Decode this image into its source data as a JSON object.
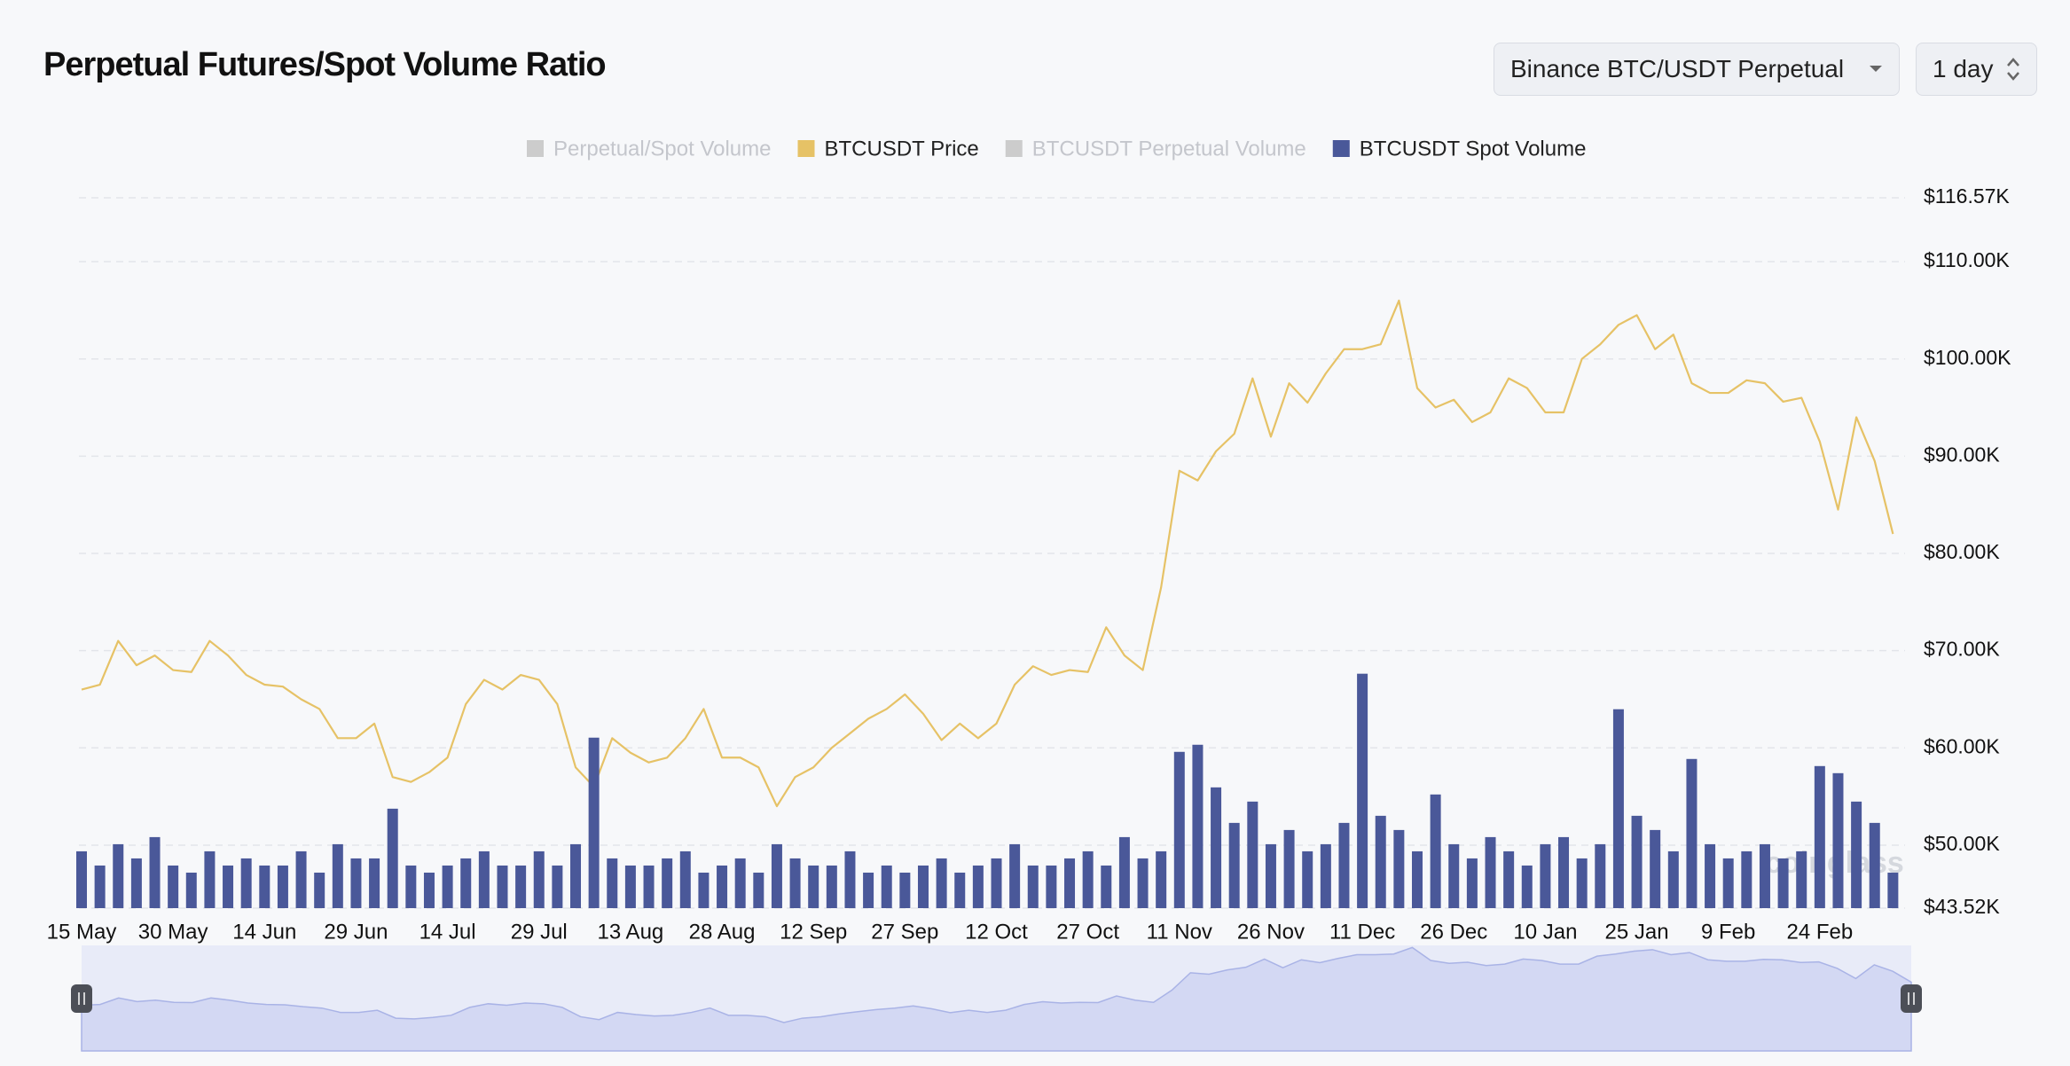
{
  "controls": {
    "exchange": "Binance BTC/USDT Perpetual",
    "interval": "1 day"
  },
  "chart_data": {
    "type": "bar-line",
    "title": "Perpetual Futures/Spot Volume Ratio",
    "watermark": "coinglass",
    "categories": [
      "15 May",
      null,
      null,
      null,
      null,
      "30 May",
      null,
      null,
      null,
      null,
      "14 Jun",
      null,
      null,
      null,
      null,
      "29 Jun",
      null,
      null,
      null,
      null,
      "14 Jul",
      null,
      null,
      null,
      null,
      "29 Jul",
      null,
      null,
      null,
      null,
      "13 Aug",
      null,
      null,
      null,
      null,
      "28 Aug",
      null,
      null,
      null,
      null,
      "12 Sep",
      null,
      null,
      null,
      null,
      "27 Sep",
      null,
      null,
      null,
      null,
      "12 Oct",
      null,
      null,
      null,
      null,
      "27 Oct",
      null,
      null,
      null,
      null,
      "11 Nov",
      null,
      null,
      null,
      null,
      "26 Nov",
      null,
      null,
      null,
      null,
      "11 Dec",
      null,
      null,
      null,
      null,
      "26 Dec",
      null,
      null,
      null,
      null,
      "10 Jan",
      null,
      null,
      null,
      null,
      "25 Jan",
      null,
      null,
      null,
      null,
      "9 Feb",
      null,
      null,
      null,
      null,
      "24 Feb",
      null,
      null,
      null,
      null
    ],
    "series": [
      {
        "name": "Perpetual/Spot Volume",
        "color": "#cccccc",
        "visible": false
      },
      {
        "name": "BTCUSDT Price",
        "color": "#e6c266",
        "visible": true,
        "values": [
          66000,
          66500,
          71000,
          68500,
          69500,
          68000,
          67800,
          71000,
          69500,
          67500,
          66500,
          66300,
          65000,
          64000,
          61000,
          61000,
          62500,
          57000,
          56500,
          57500,
          59000,
          64500,
          67000,
          66000,
          67500,
          67000,
          64500,
          58000,
          56000,
          61000,
          59500,
          58500,
          59000,
          61000,
          64000,
          59000,
          59000,
          58000,
          54000,
          57000,
          58000,
          60000,
          61500,
          63000,
          64000,
          65500,
          63500,
          60800,
          62500,
          61000,
          62500,
          66500,
          68400,
          67500,
          68000,
          67800,
          72400,
          69500,
          68000,
          76500,
          88500,
          87500,
          90500,
          92300,
          98000,
          92000,
          97500,
          95500,
          98500,
          101000,
          101000,
          101500,
          106000,
          97000,
          95000,
          95800,
          93500,
          94500,
          98000,
          97000,
          94500,
          94500,
          100000,
          101500,
          103500,
          104500,
          101000,
          102500,
          97500,
          96500,
          96500,
          97800,
          97500,
          95600,
          96000,
          91500,
          84500,
          94000,
          89500,
          82000
        ]
      },
      {
        "name": "BTCUSDT Perpetual Volume",
        "color": "#cccccc",
        "visible": false
      },
      {
        "name": "BTCUSDT Spot Volume",
        "color": "#4a5899",
        "visible": true,
        "axis": "y2",
        "values": [
          8,
          6,
          9,
          7,
          10,
          6,
          5,
          8,
          6,
          7,
          6,
          6,
          8,
          5,
          9,
          7,
          7,
          14,
          6,
          5,
          6,
          7,
          8,
          6,
          6,
          8,
          6,
          9,
          24,
          7,
          6,
          6,
          7,
          8,
          5,
          6,
          7,
          5,
          9,
          7,
          6,
          6,
          8,
          5,
          6,
          5,
          6,
          7,
          5,
          6,
          7,
          9,
          6,
          6,
          7,
          8,
          6,
          10,
          7,
          8,
          22,
          23,
          17,
          12,
          15,
          9,
          11,
          8,
          9,
          12,
          33,
          13,
          11,
          8,
          16,
          9,
          7,
          10,
          8,
          6,
          9,
          10,
          7,
          9,
          28,
          13,
          11,
          8,
          21,
          9,
          7,
          8,
          9,
          7,
          8,
          20,
          19,
          15,
          12,
          5
        ]
      }
    ],
    "ylim": [
      43520,
      116570
    ],
    "yticks": [
      {
        "value": 43520,
        "label": "$43.52K"
      },
      {
        "value": 50000,
        "label": "$50.00K"
      },
      {
        "value": 60000,
        "label": "$60.00K"
      },
      {
        "value": 70000,
        "label": "$70.00K"
      },
      {
        "value": 80000,
        "label": "$80.00K"
      },
      {
        "value": 90000,
        "label": "$90.00K"
      },
      {
        "value": 100000,
        "label": "$100.00K"
      },
      {
        "value": 110000,
        "label": "$110.00K"
      },
      {
        "value": 116570,
        "label": "$116.57K"
      }
    ],
    "y2lim": [
      0,
      100
    ],
    "grid": true
  }
}
